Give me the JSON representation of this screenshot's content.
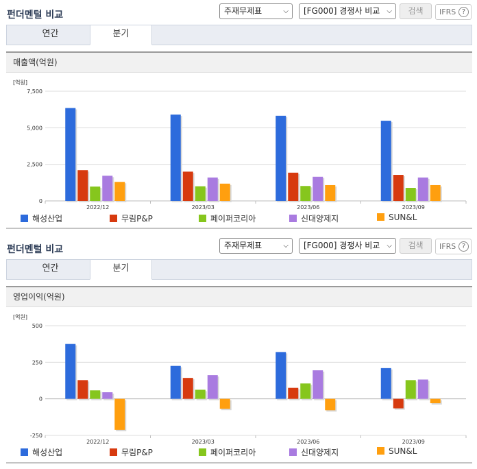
{
  "panels": [
    {
      "title": "펀더멘털 비교",
      "select1": "주재무제표",
      "select2": "[FG000] 경쟁사 비교",
      "search_label": "검색",
      "ifrs_label": "IFRS",
      "help": "?",
      "tabs": [
        "연간",
        "분기"
      ],
      "section_title": "매출액(억원)"
    },
    {
      "title": "펀더멘털 비교",
      "select1": "주재무제표",
      "select2": "[FG000] 경쟁사 비교",
      "search_label": "검색",
      "ifrs_label": "IFRS",
      "help": "?",
      "tabs": [
        "연간",
        "분기"
      ],
      "section_title": "영업이익(억원)"
    }
  ],
  "colors": [
    "#2d6bdc",
    "#d73a0f",
    "#86c61d",
    "#a97be0",
    "#ff9f0f"
  ],
  "chart_data": [
    {
      "type": "bar",
      "title": "매출액(억원)",
      "unit_label": "[억원]",
      "categories": [
        "2022/12",
        "2023/03",
        "2023/06",
        "2023/09"
      ],
      "yticks": [
        "7,500",
        "5,000",
        "2,500",
        "0"
      ],
      "ylim": [
        0,
        7500
      ],
      "grid": true,
      "legend": "bottom",
      "series": [
        {
          "name": "해성산업",
          "values": [
            6350,
            5900,
            5820,
            5480
          ]
        },
        {
          "name": "무림P&P",
          "values": [
            2100,
            2000,
            1930,
            1780
          ]
        },
        {
          "name": "페이퍼코리아",
          "values": [
            980,
            1000,
            1020,
            890
          ]
        },
        {
          "name": "신대양제지",
          "values": [
            1720,
            1600,
            1650,
            1600
          ]
        },
        {
          "name": "SUN&L",
          "values": [
            1300,
            1180,
            1080,
            1080
          ]
        }
      ]
    },
    {
      "type": "bar",
      "title": "영업이익(억원)",
      "unit_label": "[억원]",
      "categories": [
        "2022/12",
        "2023/03",
        "2023/06",
        "2023/09"
      ],
      "yticks": [
        "500",
        "250",
        "0",
        "-250"
      ],
      "ylim": [
        -250,
        500
      ],
      "grid": true,
      "legend": "bottom",
      "series": [
        {
          "name": "해성산업",
          "values": [
            375,
            225,
            320,
            210
          ]
        },
        {
          "name": "무림P&P",
          "values": [
            128,
            143,
            75,
            -65
          ]
        },
        {
          "name": "페이퍼코리아",
          "values": [
            58,
            62,
            105,
            128
          ]
        },
        {
          "name": "신대양제지",
          "values": [
            45,
            162,
            195,
            132
          ]
        },
        {
          "name": "SUN&L",
          "values": [
            -212,
            -68,
            -78,
            -30
          ]
        }
      ]
    }
  ]
}
